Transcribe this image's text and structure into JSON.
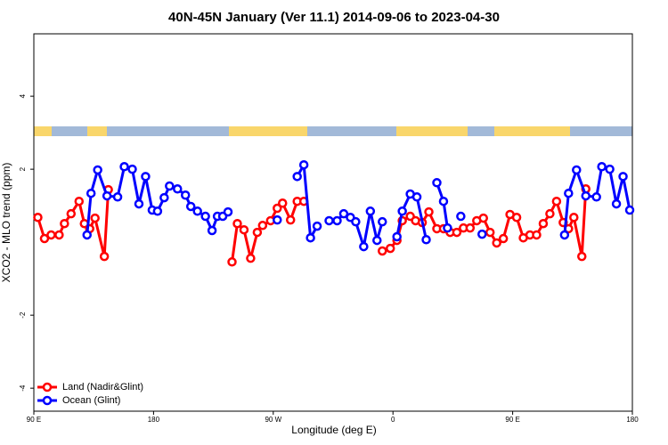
{
  "chart_data": {
    "type": "line",
    "title": "40N-45N January (Ver 11.1)   2014-09-06 to 2023-04-30",
    "x_label": "Longitude (deg E)",
    "y_label": "XCO2 - MLO trend (ppm)",
    "xlim": [
      90,
      540
    ],
    "ylim": [
      -4.63,
      5.71
    ],
    "xticks": [
      {
        "value": 90,
        "label": "90 E"
      },
      {
        "value": 180,
        "label": "180"
      },
      {
        "value": 270,
        "label": "90 W"
      },
      {
        "value": 360,
        "label": "0"
      },
      {
        "value": 450,
        "label": "90 E"
      },
      {
        "value": 540,
        "label": "180"
      }
    ],
    "yticks": [
      -4,
      -2,
      2,
      4
    ],
    "legend": "bottom-left",
    "series": [
      {
        "name": "Land (Nadir&Glint)",
        "color": "#ff0000",
        "x": [
          93,
          98,
          103,
          109,
          113,
          118,
          124,
          128,
          132,
          136,
          143,
          146,
          null,
          239,
          243,
          248,
          253,
          258,
          262,
          268,
          273,
          277,
          283,
          288,
          293,
          null,
          352,
          358,
          363,
          367,
          373,
          377,
          382,
          387,
          393,
          398,
          403,
          408,
          413,
          418,
          423,
          428,
          433,
          438,
          443,
          448,
          453,
          458,
          463,
          468,
          473,
          478,
          483,
          488,
          492,
          496,
          502,
          505
        ],
        "values": [
          0.68,
          0.1,
          0.2,
          0.2,
          0.51,
          0.78,
          1.12,
          0.51,
          0.37,
          0.66,
          -0.39,
          1.44,
          null,
          -0.54,
          0.51,
          0.34,
          -0.44,
          0.27,
          0.46,
          0.59,
          0.93,
          1.07,
          0.61,
          1.12,
          1.12,
          null,
          -0.24,
          -0.17,
          0.05,
          0.59,
          0.71,
          0.59,
          0.54,
          0.83,
          0.37,
          0.37,
          0.27,
          0.27,
          0.39,
          0.39,
          0.59,
          0.66,
          0.27,
          -0.02,
          0.1,
          0.76,
          0.68,
          0.12,
          0.2,
          0.2,
          0.51,
          0.78,
          1.12,
          0.54,
          0.37,
          0.68,
          -0.39,
          1.46
        ]
      },
      {
        "name": "Ocean (Glint)",
        "color": "#0000ff",
        "x": [
          130,
          133,
          138,
          145,
          153,
          158,
          164,
          169,
          174,
          179,
          183,
          188,
          192,
          198,
          204,
          208,
          213,
          219,
          224,
          228,
          232,
          236,
          null,
          273,
          null,
          288,
          293,
          298,
          303,
          null,
          312,
          318,
          323,
          328,
          332,
          338,
          343,
          348,
          352,
          null,
          363,
          367,
          373,
          378,
          385,
          null,
          393,
          398,
          401,
          null,
          411,
          null,
          427,
          null,
          489,
          492,
          498,
          505,
          513,
          517,
          523,
          528,
          533,
          538
        ],
        "values": [
          0.2,
          1.34,
          1.98,
          1.27,
          1.24,
          2.07,
          2.0,
          1.05,
          1.8,
          0.88,
          0.85,
          1.22,
          1.54,
          1.46,
          1.29,
          0.98,
          0.85,
          0.71,
          0.32,
          0.71,
          0.71,
          0.83,
          null,
          0.61,
          null,
          1.8,
          2.12,
          0.12,
          0.44,
          null,
          0.59,
          0.59,
          0.78,
          0.68,
          0.56,
          -0.12,
          0.85,
          0.05,
          0.56,
          null,
          0.15,
          0.85,
          1.32,
          1.24,
          0.07,
          null,
          1.63,
          1.12,
          0.39,
          null,
          0.71,
          null,
          0.22,
          null,
          0.2,
          1.34,
          1.98,
          1.27,
          1.24,
          2.07,
          2.0,
          1.05,
          1.8,
          0.88
        ]
      }
    ]
  }
}
